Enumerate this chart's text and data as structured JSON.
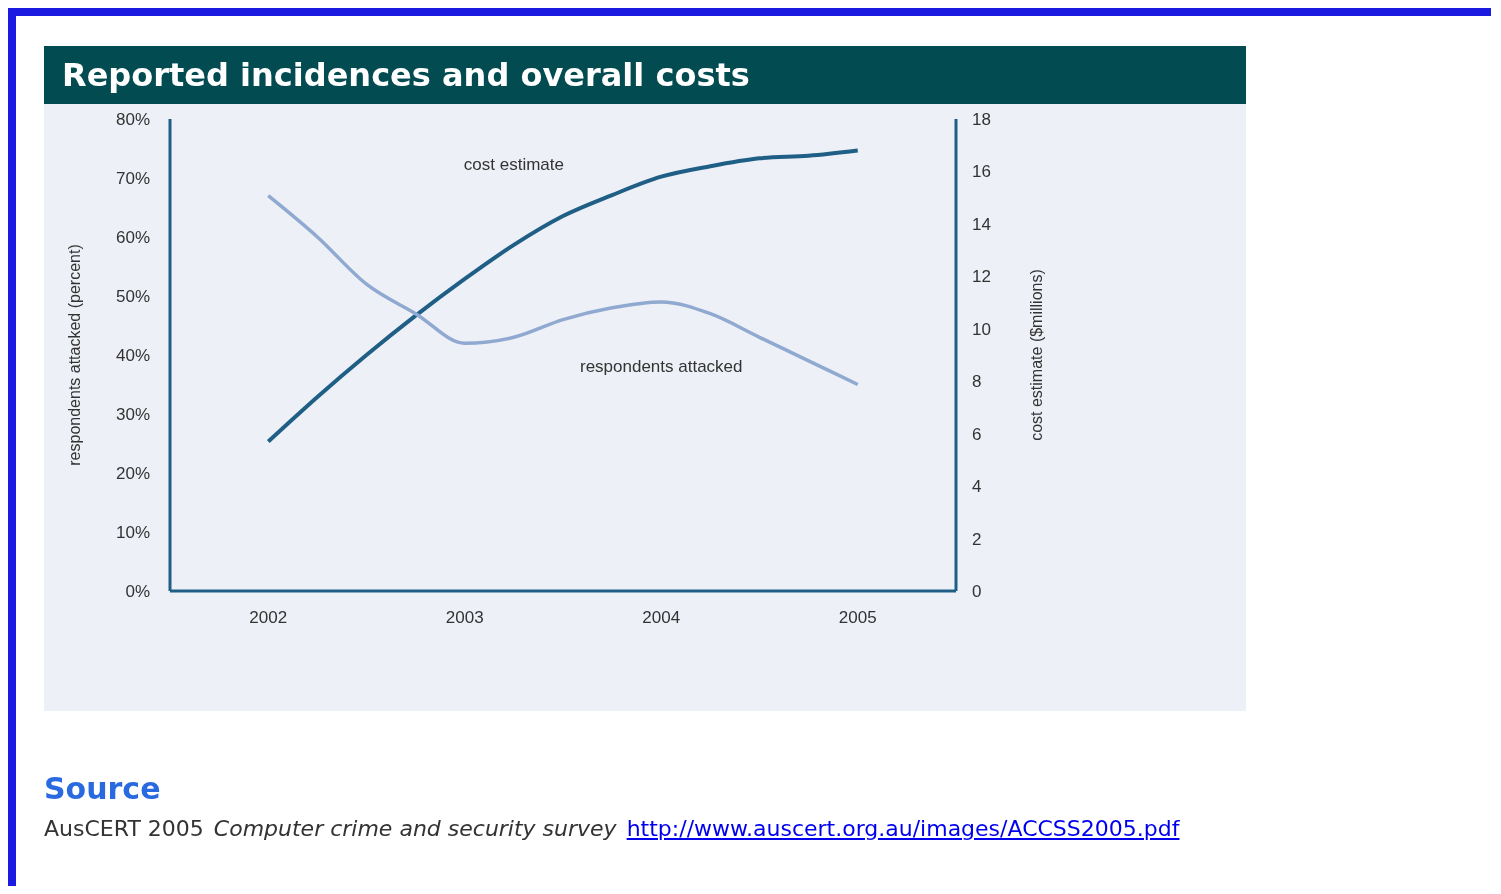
{
  "chart_data": {
    "type": "line",
    "title": "Reported incidences and overall costs",
    "ylabel": "respondents attacked (percent)",
    "y2label": "cost estimate ($millions)",
    "x": [
      2002,
      2002.25,
      2002.5,
      2002.75,
      2003,
      2003.25,
      2003.5,
      2003.75,
      2004,
      2004.25,
      2004.5,
      2004.75,
      2005
    ],
    "xlim": [
      2001.5,
      2005.5
    ],
    "xticks": [
      2002,
      2003,
      2004,
      2005
    ],
    "ylim": [
      0,
      80
    ],
    "yticks": [
      {
        "value": 0,
        "label": "0%"
      },
      {
        "value": 10,
        "label": "10%"
      },
      {
        "value": 20,
        "label": "20%"
      },
      {
        "value": 30,
        "label": "30%"
      },
      {
        "value": 40,
        "label": "40%"
      },
      {
        "value": 50,
        "label": "50%"
      },
      {
        "value": 60,
        "label": "60%"
      },
      {
        "value": 70,
        "label": "70%"
      },
      {
        "value": 80,
        "label": "80%"
      }
    ],
    "y2lim": [
      0,
      18
    ],
    "y2ticks": [
      0,
      2,
      4,
      6,
      8,
      10,
      12,
      14,
      16,
      18
    ],
    "series": [
      {
        "name": "cost estimate",
        "color": "#1f5f86",
        "axis": "y2",
        "values": [
          5.7,
          7.4,
          9.0,
          10.5,
          11.9,
          13.2,
          14.3,
          15.1,
          15.8,
          16.2,
          16.5,
          16.6,
          16.8
        ]
      },
      {
        "name": "respondents attacked",
        "color": "#8fa9d0",
        "values": [
          67,
          60,
          52,
          47,
          42,
          43,
          46,
          48,
          49,
          47,
          43,
          39,
          35
        ]
      }
    ],
    "grid": false,
    "legend": false,
    "annotations": [
      "Source",
      "AusCERT 2005",
      "Computer crime and security survey",
      "http://www.auscert.org.au/images/ACCSS2005.pdf"
    ]
  }
}
